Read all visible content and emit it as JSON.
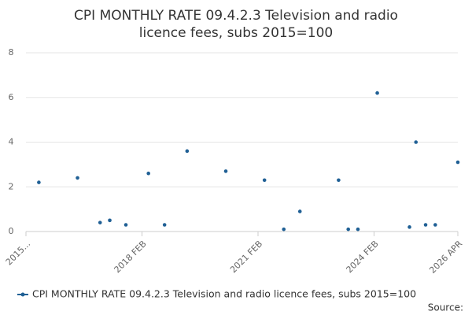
{
  "chart_data": {
    "type": "scatter",
    "title": "CPI MONTHLY RATE 09.4.2.3 Television and radio licence fees, subs 2015=100",
    "x": [
      "2015 JUN",
      "2016 JUN",
      "2017 JAN",
      "2017 APR",
      "2017 SEP",
      "2018 APR",
      "2018 SEP",
      "2019 APR",
      "2020 APR",
      "2021 APR",
      "2021 OCT",
      "2022 MAR",
      "2023 MAR",
      "2023 JUN",
      "2023 SEP",
      "2024 MAR",
      "2025 JAN",
      "2025 MAR",
      "2025 JUN",
      "2025 SEP",
      "2026 APR"
    ],
    "series": [
      {
        "name": "CPI MONTHLY RATE 09.4.2.3 Television and radio licence fees, subs 2015=100",
        "color": "#206095",
        "values": [
          2.2,
          2.4,
          0.4,
          0.5,
          0.3,
          2.6,
          0.3,
          3.6,
          2.7,
          2.3,
          0.1,
          0.9,
          2.3,
          0.1,
          0.1,
          6.2,
          0.2,
          4.0,
          0.3,
          0.3,
          3.1
        ]
      }
    ],
    "xlim": [
      "2015 FEB",
      "2026 APR"
    ],
    "xticks": [
      {
        "value": "2015 FEB",
        "label": "2015..."
      },
      "2018 FEB",
      "2021 FEB",
      "2024 FEB",
      "2026 APR"
    ],
    "ylim": [
      0,
      8
    ],
    "yticks": [
      0,
      2,
      4,
      6,
      8
    ],
    "grid": true,
    "source": "Source:"
  }
}
